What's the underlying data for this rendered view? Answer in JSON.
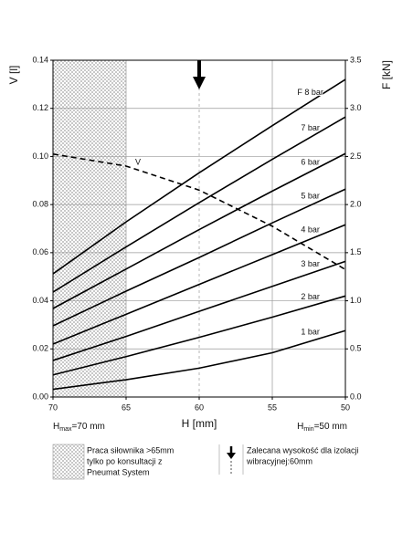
{
  "chart_data": {
    "type": "line",
    "x_label": "H [mm]",
    "y_label": "V [l]",
    "y2_label": "F [kN]",
    "x": [
      70,
      65,
      60,
      55,
      50
    ],
    "xlim": [
      70,
      50
    ],
    "xticks": [
      70,
      65,
      60,
      55,
      50
    ],
    "ylim": [
      0,
      0.14
    ],
    "yticks": [
      {
        "value": 0,
        "label": "0.00"
      },
      {
        "value": 0.02,
        "label": "0.02"
      },
      {
        "value": 0.04,
        "label": "0.04"
      },
      {
        "value": 0.06,
        "label": "0.06"
      },
      {
        "value": 0.08,
        "label": "0.08"
      },
      {
        "value": 0.1,
        "label": "0.10"
      },
      {
        "value": 0.12,
        "label": "0.12"
      },
      0.14
    ],
    "y2lim": [
      0,
      3.5
    ],
    "y2ticks": [
      {
        "value": 0,
        "label": "0.0"
      },
      0.5,
      {
        "value": 1,
        "label": "1.0"
      },
      1.5,
      {
        "value": 2,
        "label": "2.0"
      },
      2.5,
      {
        "value": 3,
        "label": "3.0"
      },
      3.5
    ],
    "grid": true,
    "hatch_until": 65,
    "recommended_x": 60,
    "series": [
      {
        "name": "1 bar",
        "color": "#000000",
        "axis": "y2",
        "values": [
          0.08,
          0.18,
          0.3,
          0.46,
          0.69
        ]
      },
      {
        "name": "2 bar",
        "color": "#000000",
        "axis": "y2",
        "values": [
          0.23,
          0.42,
          0.62,
          0.83,
          1.05
        ]
      },
      {
        "name": "3 bar",
        "color": "#000000",
        "axis": "y2",
        "values": [
          0.38,
          0.63,
          0.89,
          1.15,
          1.41
        ]
      },
      {
        "name": "4 bar",
        "color": "#000000",
        "axis": "y2",
        "values": [
          0.55,
          0.86,
          1.17,
          1.48,
          1.79
        ]
      },
      {
        "name": "5 bar",
        "color": "#000000",
        "axis": "y2",
        "values": [
          0.74,
          1.1,
          1.45,
          1.81,
          2.16
        ]
      },
      {
        "name": "6 bar",
        "color": "#000000",
        "axis": "y2",
        "values": [
          0.92,
          1.33,
          1.74,
          2.14,
          2.53
        ]
      },
      {
        "name": "7 bar",
        "color": "#000000",
        "axis": "y2",
        "values": [
          1.09,
          1.56,
          2.02,
          2.47,
          2.91
        ]
      },
      {
        "name": "F 8 bar",
        "color": "#000000",
        "axis": "y2",
        "values": [
          1.28,
          1.82,
          2.33,
          2.82,
          3.3
        ]
      },
      {
        "name": "V",
        "color": "#000000",
        "dashed": true,
        "values": [
          0.101,
          0.096,
          0.086,
          0.071,
          0.053
        ]
      }
    ],
    "h_max": {
      "main": "H",
      "sub": "max",
      "rest": "=70 mm"
    },
    "h_min": {
      "main": "H",
      "sub": "min",
      "rest": "=50 mm"
    },
    "legend_hatch": [
      "Praca siłownika >65mm",
      "tylko po konsultacji z",
      "Pneumat System"
    ],
    "legend_arrow": [
      "Zalecana wysokość dla izolacji",
      "wibracyjnej:60mm"
    ]
  }
}
